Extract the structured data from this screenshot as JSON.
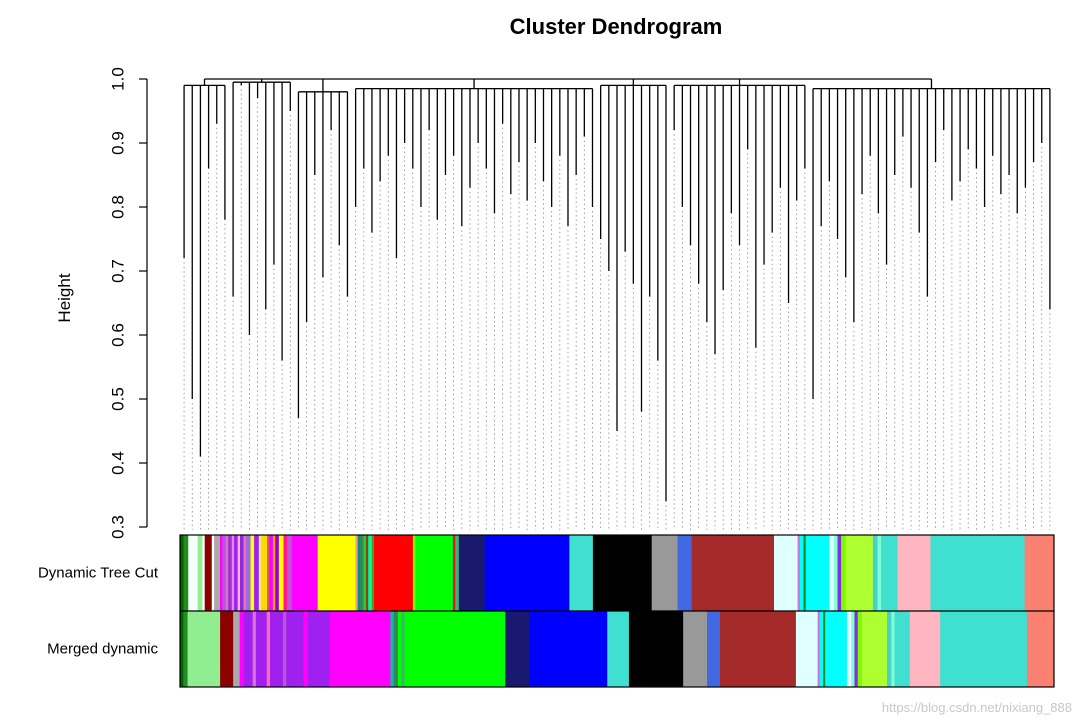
{
  "chart_data": {
    "type": "dendrogram",
    "title": "Cluster Dendrogram",
    "ylabel": "Height",
    "ylim": [
      0.3,
      1.0
    ],
    "yticks": [
      "0.3",
      "0.4",
      "0.5",
      "0.6",
      "0.7",
      "0.8",
      "0.9",
      "1.0"
    ],
    "grid": false,
    "root_height": 1.0,
    "clusters": [
      {
        "merge": 0.99,
        "leaves": [
          0.72,
          0.5,
          0.41,
          0.86,
          0.93,
          0.78
        ]
      },
      {
        "merge": 0.995,
        "leaves": [
          0.66,
          0.99,
          0.6,
          0.97,
          0.64,
          0.71,
          0.56,
          0.95
        ]
      },
      {
        "merge": 0.98,
        "leaves": [
          0.47,
          0.62,
          0.85,
          0.69,
          0.92,
          0.74,
          0.66
        ]
      },
      {
        "merge": 0.985,
        "leaves": [
          0.8,
          0.86,
          0.76,
          0.84,
          0.88,
          0.72,
          0.9,
          0.86,
          0.8,
          0.92,
          0.78,
          0.85,
          0.88,
          0.77,
          0.83,
          0.9,
          0.86,
          0.79,
          0.93,
          0.82,
          0.87,
          0.81,
          0.9,
          0.84,
          0.8,
          0.88,
          0.77,
          0.85,
          0.91,
          0.8
        ]
      },
      {
        "merge": 0.99,
        "leaves": [
          0.75,
          0.7,
          0.45,
          0.73,
          0.68,
          0.48,
          0.66,
          0.56,
          0.34
        ]
      },
      {
        "merge": 0.99,
        "leaves": [
          0.92,
          0.8,
          0.74,
          0.68,
          0.62,
          0.57,
          0.67,
          0.79,
          0.74,
          0.89,
          0.58,
          0.71,
          0.76,
          0.83,
          0.65,
          0.81,
          0.86
        ]
      },
      {
        "merge": 0.985,
        "leaves": [
          0.5,
          0.77,
          0.84,
          0.75,
          0.69,
          0.62,
          0.82,
          0.88,
          0.79,
          0.71,
          0.85,
          0.91,
          0.83,
          0.76,
          0.66,
          0.87,
          0.92,
          0.81,
          0.84,
          0.89,
          0.86,
          0.8,
          0.88,
          0.82,
          0.85,
          0.79,
          0.83,
          0.87,
          0.9,
          0.64
        ]
      }
    ],
    "color_rows": [
      {
        "label": "Dynamic Tree Cut",
        "segments": [
          [
            "#006400",
            3
          ],
          [
            "#228B22",
            4
          ],
          [
            "#F5FFFA",
            8
          ],
          [
            "#90EE90",
            4
          ],
          [
            "#FFFFFF",
            2
          ],
          [
            "#8B0000",
            6
          ],
          [
            "#FFFFFF",
            2
          ],
          [
            "#A9A9A9",
            5
          ],
          [
            "#FF00FF",
            2
          ],
          [
            "#BA55D3",
            3
          ],
          [
            "#DA70D6",
            2
          ],
          [
            "#9932CC",
            3
          ],
          [
            "#EE82EE",
            2
          ],
          [
            "#A020F0",
            3
          ],
          [
            "#FFB6C1",
            2
          ],
          [
            "#8A2BE2",
            3
          ],
          [
            "#FF69B4",
            2
          ],
          [
            "#9370DB",
            4
          ],
          [
            "#FFFF00",
            3
          ],
          [
            "#A020F0",
            4
          ],
          [
            "#F0E68C",
            2
          ],
          [
            "#FFD700",
            5
          ],
          [
            "#CD5C5C",
            2
          ],
          [
            "#FF00FF",
            3
          ],
          [
            "#FFA500",
            2
          ],
          [
            "#9400D3",
            3
          ],
          [
            "#FFFF00",
            4
          ],
          [
            "#FF1493",
            3
          ],
          [
            "#BA55D3",
            4
          ],
          [
            "#FF00FF",
            22
          ],
          [
            "#FFFF00",
            32
          ],
          [
            "#FFA07A",
            2
          ],
          [
            "#008B8B",
            2
          ],
          [
            "#2E8B57",
            3
          ],
          [
            "#32CD32",
            2
          ],
          [
            "#8B4513",
            2
          ],
          [
            "#00FA9A",
            3
          ],
          [
            "#6B8E23",
            2
          ],
          [
            "#FF0000",
            33
          ],
          [
            "#7CFC00",
            2
          ],
          [
            "#00FF00",
            32
          ],
          [
            "#DC143C",
            2
          ],
          [
            "#3CB371",
            3
          ],
          [
            "#191970",
            22
          ],
          [
            "#0000FF",
            72
          ],
          [
            "#40E0D0",
            20
          ],
          [
            "#000000",
            50
          ],
          [
            "#999999",
            22
          ],
          [
            "#4169E1",
            12
          ],
          [
            "#A52A2A",
            70
          ],
          [
            "#E0FFFF",
            20
          ],
          [
            "#DA70D6",
            2
          ],
          [
            "#00FFFF",
            3
          ],
          [
            "#228B22",
            2
          ],
          [
            "#00FFFF",
            20
          ],
          [
            "#E0FFFF",
            4
          ],
          [
            "#7FFFD4",
            3
          ],
          [
            "#8A2BE2",
            3
          ],
          [
            "#7CFC00",
            4
          ],
          [
            "#ADFF2F",
            23
          ],
          [
            "#48D1CC",
            4
          ],
          [
            "#7FFFD4",
            3
          ],
          [
            "#40E0D0",
            14
          ],
          [
            "#FFB6C1",
            28
          ],
          [
            "#40E0D0",
            80
          ],
          [
            "#FA8072",
            25
          ]
        ]
      },
      {
        "label": "Merged dynamic",
        "segments": [
          [
            "#006400",
            3
          ],
          [
            "#228B22",
            4
          ],
          [
            "#90EE90",
            30
          ],
          [
            "#8B0000",
            12
          ],
          [
            "#A9A9A9",
            6
          ],
          [
            "#FF00FF",
            4
          ],
          [
            "#A020F0",
            8
          ],
          [
            "#DA70D6",
            3
          ],
          [
            "#A020F0",
            10
          ],
          [
            "#FF69B4",
            3
          ],
          [
            "#A020F0",
            12
          ],
          [
            "#BA55D3",
            3
          ],
          [
            "#A020F0",
            16
          ],
          [
            "#FF00FF",
            4
          ],
          [
            "#A020F0",
            20
          ],
          [
            "#FF00FF",
            56
          ],
          [
            "#20B2AA",
            3
          ],
          [
            "#2E8B57",
            4
          ],
          [
            "#00FF00",
            3
          ],
          [
            "#3CB371",
            3
          ],
          [
            "#00FF00",
            93
          ],
          [
            "#191970",
            22
          ],
          [
            "#0000FF",
            72
          ],
          [
            "#40E0D0",
            20
          ],
          [
            "#000000",
            50
          ],
          [
            "#999999",
            22
          ],
          [
            "#4169E1",
            12
          ],
          [
            "#A52A2A",
            70
          ],
          [
            "#E0FFFF",
            20
          ],
          [
            "#DA70D6",
            2
          ],
          [
            "#00FFFF",
            3
          ],
          [
            "#228B22",
            2
          ],
          [
            "#00FFFF",
            20
          ],
          [
            "#E0FFFF",
            4
          ],
          [
            "#7FFFD4",
            3
          ],
          [
            "#8A2BE2",
            3
          ],
          [
            "#7CFC00",
            4
          ],
          [
            "#ADFF2F",
            23
          ],
          [
            "#48D1CC",
            4
          ],
          [
            "#7FFFD4",
            3
          ],
          [
            "#40E0D0",
            14
          ],
          [
            "#FFB6C1",
            28
          ],
          [
            "#40E0D0",
            80
          ],
          [
            "#FA8072",
            25
          ]
        ]
      }
    ]
  },
  "watermark": "https://blog.csdn.net/nixiang_888"
}
